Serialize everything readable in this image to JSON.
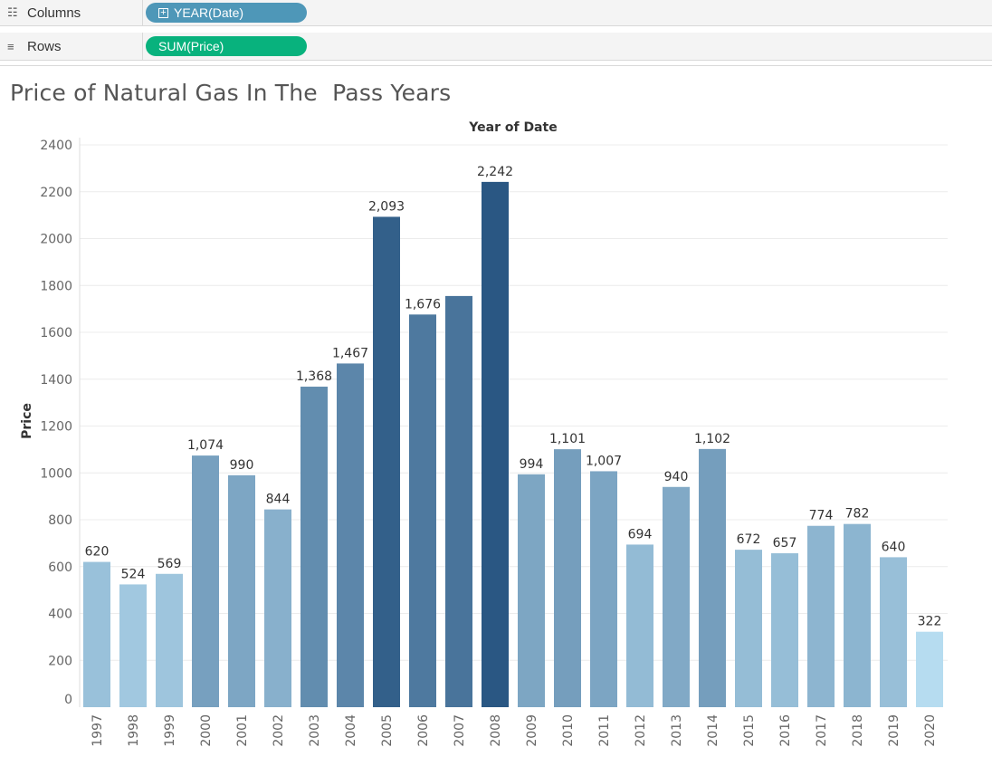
{
  "shelves": {
    "columns": {
      "label": "Columns",
      "icon": "columns-icon",
      "pill": "YEAR(Date)",
      "pill_color": "#4e97b8"
    },
    "rows": {
      "label": "Rows",
      "icon": "rows-icon",
      "pill": "SUM(Price)",
      "pill_color": "#08b27d"
    }
  },
  "chart_data": {
    "type": "bar",
    "title": "Price of Natural Gas In The  Pass Years",
    "header": "Year of Date",
    "xlabel": "",
    "ylabel": "Price",
    "ylim": [
      0,
      2400
    ],
    "yticks": [
      0,
      200,
      400,
      600,
      800,
      1000,
      1200,
      1400,
      1600,
      1800,
      2000,
      2200,
      2400
    ],
    "grid": true,
    "categories": [
      "1997",
      "1998",
      "1999",
      "2000",
      "2001",
      "2002",
      "2003",
      "2004",
      "2005",
      "2006",
      "2007",
      "2008",
      "2009",
      "2010",
      "2011",
      "2012",
      "2013",
      "2014",
      "2015",
      "2016",
      "2017",
      "2018",
      "2019",
      "2020"
    ],
    "values": [
      620,
      524,
      569,
      1074,
      990,
      844,
      1368,
      1467,
      2093,
      1676,
      1755,
      2242,
      994,
      1101,
      1007,
      694,
      940,
      1102,
      672,
      657,
      774,
      782,
      640,
      322
    ],
    "data_labels": [
      "620",
      "524",
      "569",
      "1,074",
      "990",
      "844",
      "1,368",
      "1,467",
      "2,093",
      "1,676",
      "",
      "2,242",
      "994",
      "1,101",
      "1,007",
      "694",
      "940",
      "1,102",
      "672",
      "657",
      "774",
      "782",
      "640",
      "322"
    ],
    "color_scale": {
      "low": "#b6dcf0",
      "high": "#2a5783"
    }
  }
}
